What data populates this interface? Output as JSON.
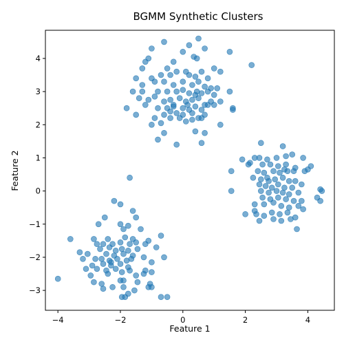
{
  "chart_data": {
    "type": "scatter",
    "title": "BGMM Synthetic Clusters",
    "xlabel": "Feature 1",
    "ylabel": "Feature 2",
    "xlim": [
      -4.4,
      4.85
    ],
    "ylim": [
      -3.6,
      4.85
    ],
    "xticks": [
      -4,
      -2,
      0,
      2,
      4
    ],
    "yticks": [
      -3,
      -2,
      -1,
      0,
      1,
      2,
      3,
      4
    ],
    "xtick_labels": [
      "−4",
      "−2",
      "0",
      "2",
      "4"
    ],
    "ytick_labels": [
      "−3",
      "−2",
      "−1",
      "0",
      "1",
      "2",
      "3",
      "4"
    ],
    "grid": false,
    "legend": "none",
    "point_color": "#1f77b4",
    "point_alpha": 0.6,
    "series": [
      {
        "points": [
          [
            -0.6,
            4.5
          ],
          [
            0.2,
            4.4
          ],
          [
            0.5,
            4.6
          ],
          [
            -1.0,
            4.3
          ],
          [
            0.0,
            4.2
          ],
          [
            0.7,
            4.3
          ],
          [
            1.5,
            4.2
          ],
          [
            -1.2,
            3.9
          ],
          [
            -1.1,
            4.0
          ],
          [
            -0.3,
            3.9
          ],
          [
            0.35,
            4.05
          ],
          [
            0.45,
            4.0
          ],
          [
            2.2,
            3.8
          ],
          [
            -1.3,
            3.7
          ],
          [
            -0.5,
            3.7
          ],
          [
            -0.2,
            3.6
          ],
          [
            0.1,
            3.6
          ],
          [
            0.6,
            3.6
          ],
          [
            1.0,
            3.7
          ],
          [
            1.2,
            3.6
          ],
          [
            -1.5,
            3.4
          ],
          [
            -1.0,
            3.4
          ],
          [
            -0.7,
            3.5
          ],
          [
            -0.4,
            3.5
          ],
          [
            0.2,
            3.5
          ],
          [
            0.4,
            3.45
          ],
          [
            0.8,
            3.4
          ],
          [
            -1.3,
            3.2
          ],
          [
            -0.9,
            3.3
          ],
          [
            -0.6,
            3.3
          ],
          [
            -0.3,
            3.2
          ],
          [
            0.0,
            3.3
          ],
          [
            0.3,
            3.2
          ],
          [
            0.5,
            3.3
          ],
          [
            0.7,
            3.15
          ],
          [
            0.9,
            3.1
          ],
          [
            1.1,
            3.1
          ],
          [
            1.5,
            3.0
          ],
          [
            -1.6,
            3.0
          ],
          [
            -1.3,
            3.0
          ],
          [
            -0.8,
            3.0
          ],
          [
            -0.5,
            3.0
          ],
          [
            -0.2,
            3.0
          ],
          [
            0.0,
            3.05
          ],
          [
            0.2,
            2.95
          ],
          [
            0.4,
            2.9
          ],
          [
            0.6,
            2.95
          ],
          [
            0.8,
            3.0
          ],
          [
            1.0,
            2.9
          ],
          [
            -1.4,
            2.8
          ],
          [
            -1.1,
            2.75
          ],
          [
            -0.9,
            2.85
          ],
          [
            -0.6,
            2.7
          ],
          [
            -0.4,
            2.75
          ],
          [
            -0.1,
            2.8
          ],
          [
            0.1,
            2.7
          ],
          [
            0.3,
            2.75
          ],
          [
            0.5,
            2.8
          ],
          [
            0.7,
            2.6
          ],
          [
            0.9,
            2.7
          ],
          [
            1.2,
            2.7
          ],
          [
            -1.8,
            2.5
          ],
          [
            -1.2,
            2.6
          ],
          [
            -0.8,
            2.5
          ],
          [
            -0.5,
            2.5
          ],
          [
            -0.3,
            2.55
          ],
          [
            0.0,
            2.5
          ],
          [
            0.2,
            2.45
          ],
          [
            0.4,
            2.55
          ],
          [
            0.6,
            2.45
          ],
          [
            0.8,
            2.6
          ],
          [
            1.0,
            2.6
          ],
          [
            1.6,
            2.5
          ],
          [
            1.6,
            2.45
          ],
          [
            -1.5,
            2.3
          ],
          [
            -0.9,
            2.2
          ],
          [
            -0.6,
            2.3
          ],
          [
            -0.4,
            2.4
          ],
          [
            -0.2,
            2.35
          ],
          [
            0.0,
            2.3
          ],
          [
            0.3,
            2.35
          ],
          [
            0.5,
            2.2
          ],
          [
            0.7,
            2.3
          ],
          [
            -1.0,
            2.0
          ],
          [
            -0.7,
            2.05
          ],
          [
            -0.4,
            2.2
          ],
          [
            0.1,
            2.1
          ],
          [
            0.3,
            2.15
          ],
          [
            0.6,
            2.2
          ],
          [
            1.2,
            2.0
          ],
          [
            -0.6,
            1.75
          ],
          [
            0.4,
            1.8
          ],
          [
            0.7,
            1.75
          ],
          [
            -0.8,
            1.55
          ],
          [
            -0.2,
            1.4
          ],
          [
            0.6,
            1.45
          ],
          [
            -0.1,
            2.2
          ],
          [
            -0.3,
            2.6
          ],
          [
            0.15,
            2.6
          ],
          [
            0.45,
            3.0
          ]
        ]
      },
      {
        "points": [
          [
            2.5,
            1.45
          ],
          [
            3.2,
            1.35
          ],
          [
            1.9,
            0.95
          ],
          [
            2.1,
            0.8
          ],
          [
            2.3,
            1.0
          ],
          [
            2.45,
            1.0
          ],
          [
            2.7,
            0.95
          ],
          [
            3.0,
            1.0
          ],
          [
            3.3,
            1.05
          ],
          [
            3.5,
            1.1
          ],
          [
            3.85,
            1.0
          ],
          [
            4.1,
            0.75
          ],
          [
            2.15,
            0.85
          ],
          [
            2.55,
            0.8
          ],
          [
            2.8,
            0.8
          ],
          [
            3.05,
            0.75
          ],
          [
            3.3,
            0.8
          ],
          [
            3.6,
            0.7
          ],
          [
            3.9,
            0.6
          ],
          [
            4.0,
            0.65
          ],
          [
            1.55,
            0.6
          ],
          [
            2.4,
            0.6
          ],
          [
            2.6,
            0.55
          ],
          [
            2.9,
            0.6
          ],
          [
            3.1,
            0.55
          ],
          [
            3.35,
            0.6
          ],
          [
            3.55,
            0.6
          ],
          [
            2.25,
            0.4
          ],
          [
            2.5,
            0.35
          ],
          [
            2.7,
            0.4
          ],
          [
            2.95,
            0.35
          ],
          [
            3.2,
            0.4
          ],
          [
            3.4,
            0.3
          ],
          [
            3.6,
            0.3
          ],
          [
            3.8,
            0.2
          ],
          [
            2.45,
            0.2
          ],
          [
            2.65,
            0.15
          ],
          [
            2.85,
            0.1
          ],
          [
            3.05,
            0.2
          ],
          [
            3.25,
            0.1
          ],
          [
            3.5,
            0.1
          ],
          [
            4.4,
            0.05
          ],
          [
            4.45,
            0.0
          ],
          [
            1.55,
            0.0
          ],
          [
            2.5,
            0.0
          ],
          [
            2.75,
            -0.05
          ],
          [
            3.0,
            0.0
          ],
          [
            3.2,
            -0.05
          ],
          [
            3.4,
            -0.1
          ],
          [
            3.7,
            -0.05
          ],
          [
            2.55,
            -0.2
          ],
          [
            2.8,
            -0.25
          ],
          [
            3.05,
            -0.2
          ],
          [
            3.3,
            -0.25
          ],
          [
            3.55,
            -0.3
          ],
          [
            3.8,
            -0.3
          ],
          [
            4.3,
            -0.2
          ],
          [
            4.4,
            -0.3
          ],
          [
            2.3,
            -0.4
          ],
          [
            2.6,
            -0.4
          ],
          [
            2.9,
            -0.35
          ],
          [
            3.15,
            -0.45
          ],
          [
            3.4,
            -0.5
          ],
          [
            3.7,
            -0.45
          ],
          [
            3.85,
            -0.55
          ],
          [
            2.0,
            -0.7
          ],
          [
            2.35,
            -0.7
          ],
          [
            2.6,
            -0.75
          ],
          [
            2.85,
            -0.65
          ],
          [
            3.1,
            -0.7
          ],
          [
            3.35,
            -0.65
          ],
          [
            2.45,
            -0.9
          ],
          [
            2.9,
            -0.85
          ],
          [
            3.15,
            -0.9
          ],
          [
            3.45,
            -0.85
          ],
          [
            3.6,
            -0.8
          ],
          [
            3.65,
            -1.15
          ],
          [
            2.3,
            -0.6
          ],
          [
            2.75,
            0.3
          ],
          [
            3.25,
            0.65
          ]
        ]
      },
      {
        "points": [
          [
            -1.7,
            0.4
          ],
          [
            -2.2,
            -0.3
          ],
          [
            -2.0,
            -0.4
          ],
          [
            -1.6,
            -0.6
          ],
          [
            -2.5,
            -0.8
          ],
          [
            -1.5,
            -0.8
          ],
          [
            -2.7,
            -1.0
          ],
          [
            -2.0,
            -1.0
          ],
          [
            -1.75,
            -1.05
          ],
          [
            -1.9,
            -1.15
          ],
          [
            -1.35,
            -1.15
          ],
          [
            -0.7,
            -1.35
          ],
          [
            -3.6,
            -1.45
          ],
          [
            -2.85,
            -1.45
          ],
          [
            -2.4,
            -1.45
          ],
          [
            -1.85,
            -1.4
          ],
          [
            -1.6,
            -1.45
          ],
          [
            -1.1,
            -1.5
          ],
          [
            -2.75,
            -1.6
          ],
          [
            -2.55,
            -1.6
          ],
          [
            -2.25,
            -1.6
          ],
          [
            -2.0,
            -1.55
          ],
          [
            -1.7,
            -1.6
          ],
          [
            -1.5,
            -1.55
          ],
          [
            -1.2,
            -1.6
          ],
          [
            -0.85,
            -1.7
          ],
          [
            -2.65,
            -1.75
          ],
          [
            -2.35,
            -1.7
          ],
          [
            -2.15,
            -1.8
          ],
          [
            -1.95,
            -1.75
          ],
          [
            -1.75,
            -1.8
          ],
          [
            -1.45,
            -1.75
          ],
          [
            -3.3,
            -1.85
          ],
          [
            -3.05,
            -1.9
          ],
          [
            -2.45,
            -1.9
          ],
          [
            -2.2,
            -1.95
          ],
          [
            -1.9,
            -1.9
          ],
          [
            -1.6,
            -1.95
          ],
          [
            -3.2,
            -2.05
          ],
          [
            -2.8,
            -2.05
          ],
          [
            -2.6,
            -2.05
          ],
          [
            -2.35,
            -2.1
          ],
          [
            -2.1,
            -2.05
          ],
          [
            -1.8,
            -2.1
          ],
          [
            -1.25,
            -2.0
          ],
          [
            -0.6,
            -2.0
          ],
          [
            -2.9,
            -2.25
          ],
          [
            -2.55,
            -2.2
          ],
          [
            -2.3,
            -2.25
          ],
          [
            -2.0,
            -2.2
          ],
          [
            -1.75,
            -2.3
          ],
          [
            -1.0,
            -2.15
          ],
          [
            -3.1,
            -2.35
          ],
          [
            -2.75,
            -2.35
          ],
          [
            -2.45,
            -2.4
          ],
          [
            -2.15,
            -2.35
          ],
          [
            -1.95,
            -2.45
          ],
          [
            -1.7,
            -2.4
          ],
          [
            -1.2,
            -2.4
          ],
          [
            -2.95,
            -2.55
          ],
          [
            -2.4,
            -2.5
          ],
          [
            -1.5,
            -2.55
          ],
          [
            -1.25,
            -2.5
          ],
          [
            -1.0,
            -2.45
          ],
          [
            -2.85,
            -2.75
          ],
          [
            -2.6,
            -2.8
          ],
          [
            -2.0,
            -2.7
          ],
          [
            -1.9,
            -2.7
          ],
          [
            -1.45,
            -2.75
          ],
          [
            -1.05,
            -2.8
          ],
          [
            -2.55,
            -2.95
          ],
          [
            -2.25,
            -2.9
          ],
          [
            -1.9,
            -2.9
          ],
          [
            -1.55,
            -3.0
          ],
          [
            -1.1,
            -2.9
          ],
          [
            -1.0,
            -2.9
          ],
          [
            -1.75,
            -3.1
          ],
          [
            -1.95,
            -3.2
          ],
          [
            -1.85,
            -3.2
          ],
          [
            -0.7,
            -3.2
          ],
          [
            -0.5,
            -3.2
          ],
          [
            -4.0,
            -2.65
          ],
          [
            -2.3,
            -2.15
          ],
          [
            -1.65,
            -2.05
          ]
        ]
      }
    ]
  }
}
